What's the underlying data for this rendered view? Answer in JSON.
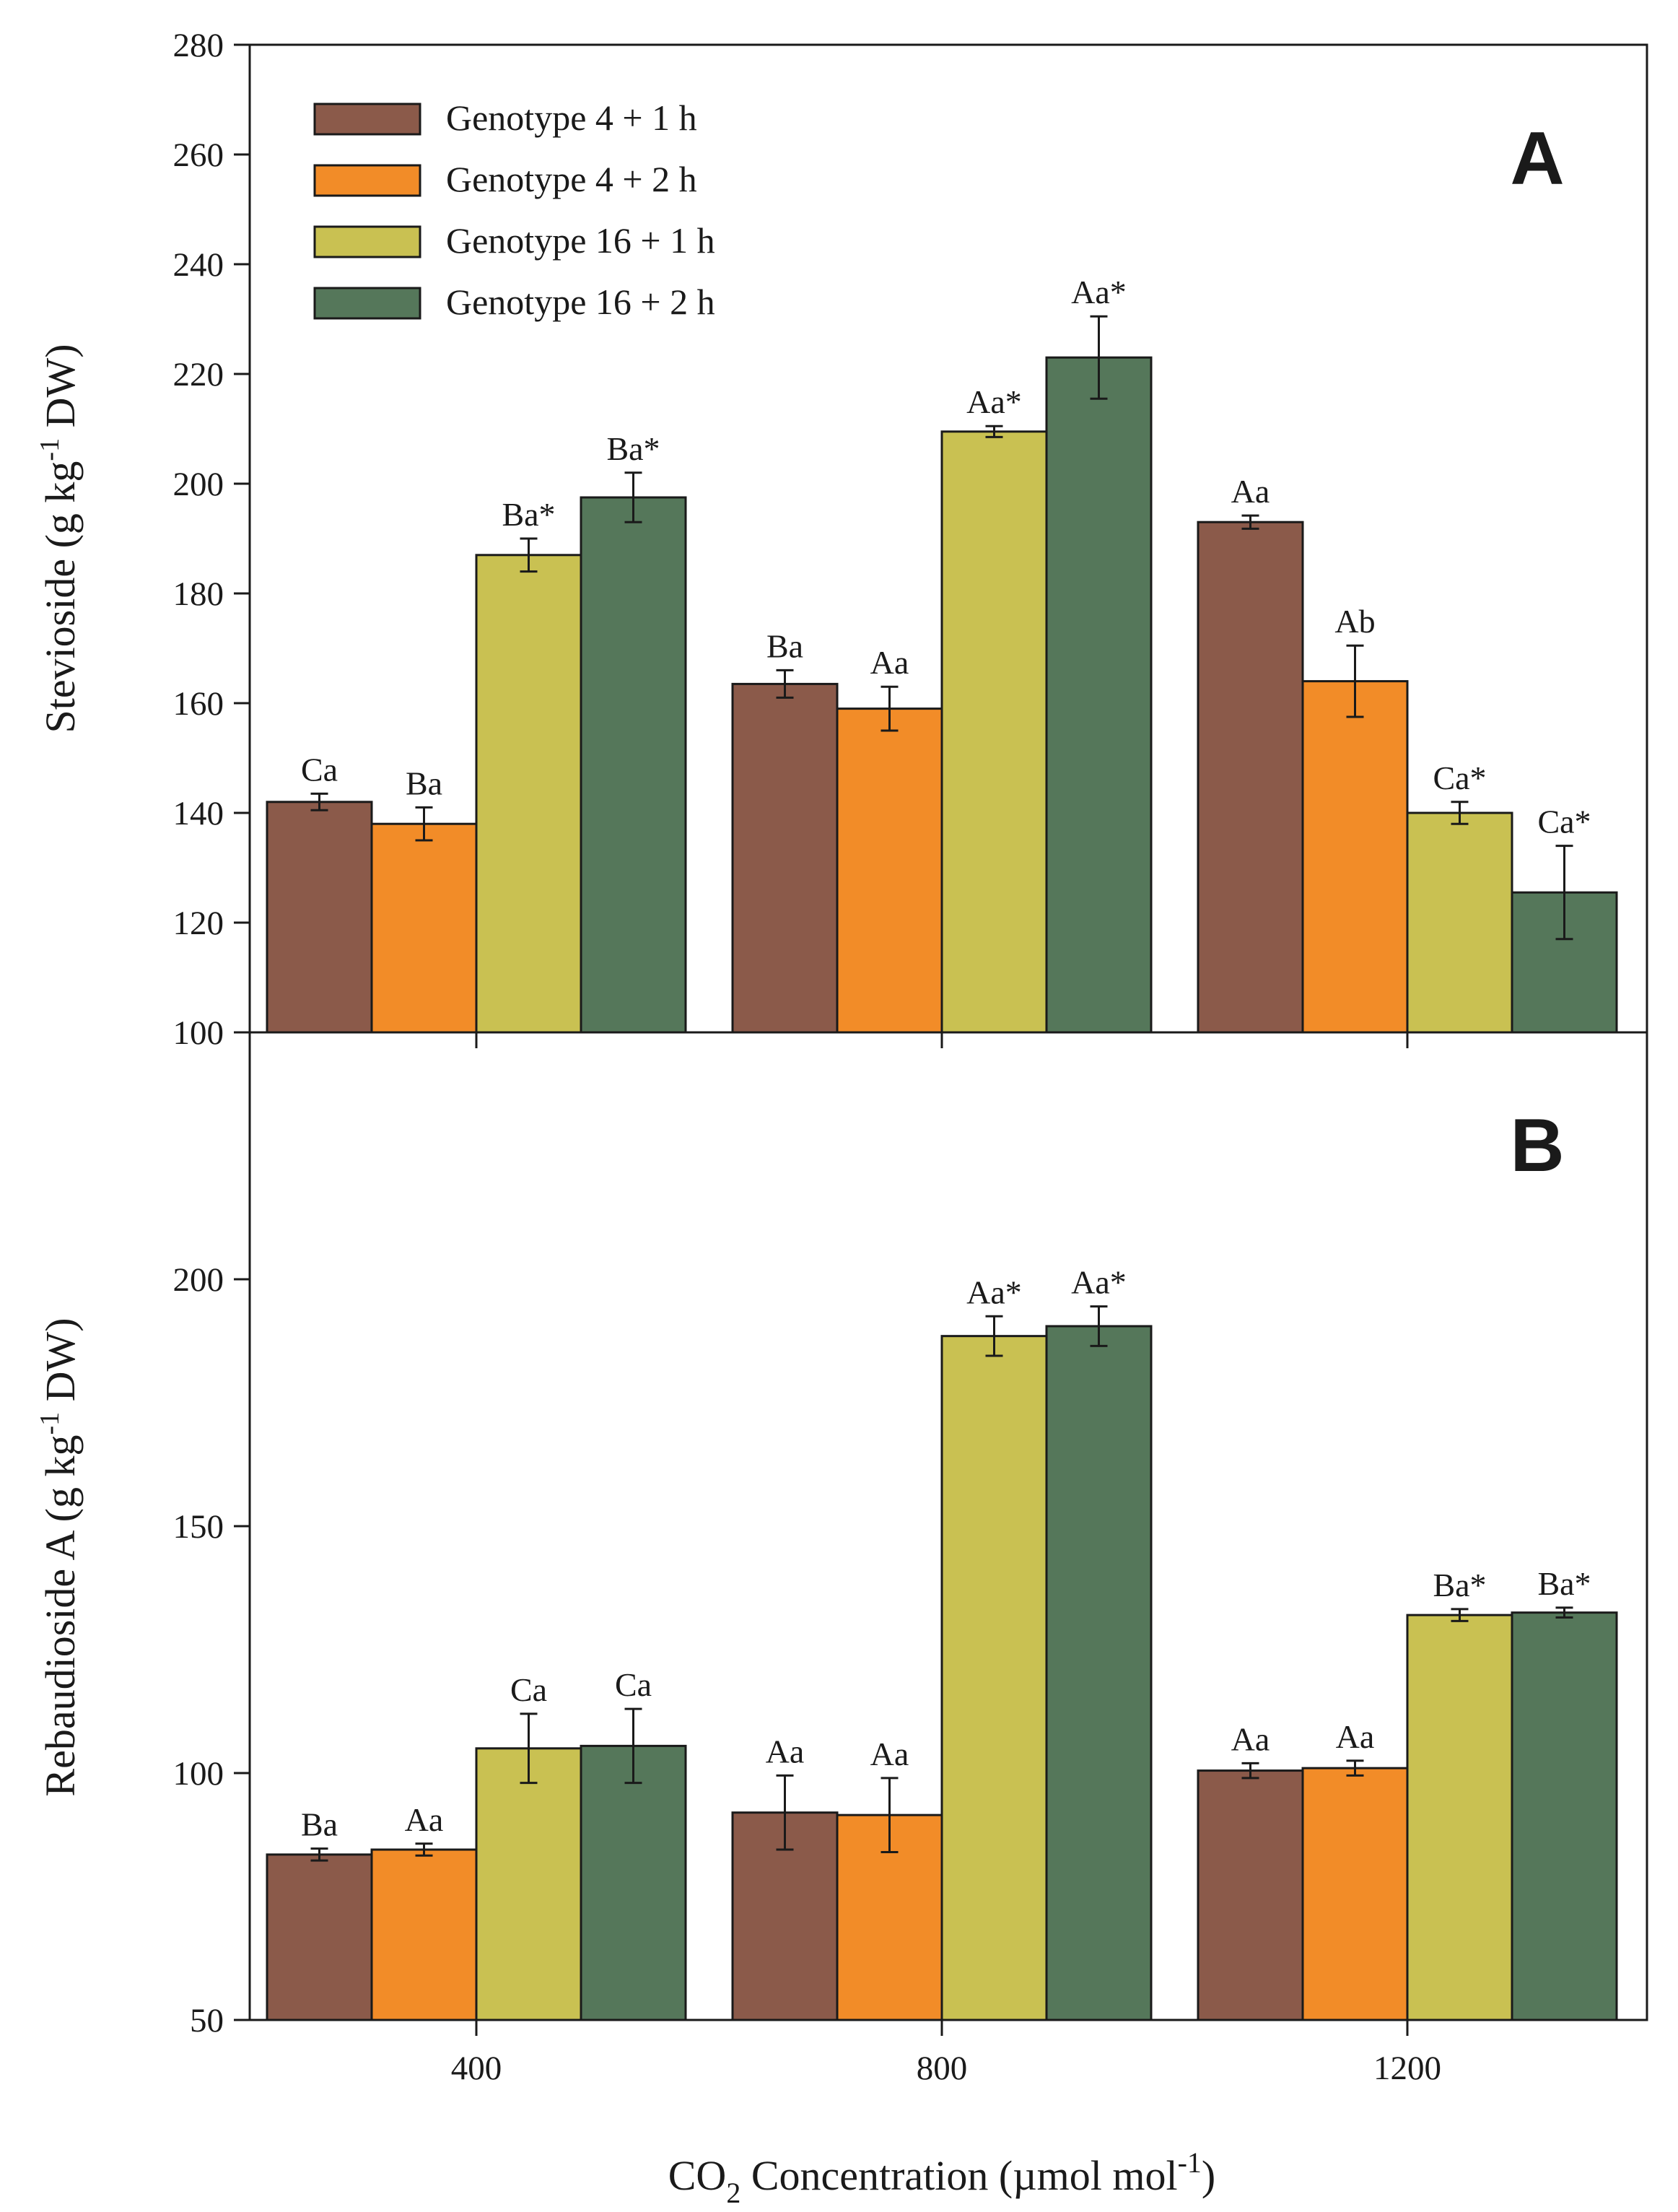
{
  "chart_data": {
    "type": "bar",
    "categories": [
      "400",
      "800",
      "1200"
    ],
    "xlabel": {
      "prefix": "CO",
      "sub": "2",
      "mid": " Concentration (µmol mol",
      "sup": "-1",
      "suffix": ")"
    },
    "legend": {
      "placement": "top-left"
    },
    "series": [
      {
        "name": "Genotype 4 + 1 h",
        "color": "#8b5a4a"
      },
      {
        "name": "Genotype 4 + 2 h",
        "color": "#f28c28"
      },
      {
        "name": "Genotype 16 + 1 h",
        "color": "#c9c152"
      },
      {
        "name": "Genotype 16 + 2 h",
        "color": "#55775a"
      }
    ],
    "panels": [
      {
        "id": "A",
        "letter": "A",
        "ylabel": {
          "prefix": "Stevioside (g kg",
          "sup": "-1",
          "suffix": " DW)"
        },
        "ylim": [
          100,
          280
        ],
        "yticks": [
          100,
          120,
          140,
          160,
          180,
          200,
          220,
          240,
          260,
          280
        ],
        "values": [
          [
            142,
            163.5,
            193
          ],
          [
            138,
            159,
            164
          ],
          [
            187,
            209.5,
            140
          ],
          [
            197.5,
            223,
            125.5
          ]
        ],
        "errors": [
          [
            1.5,
            2.5,
            1.2
          ],
          [
            3,
            4,
            6.5
          ],
          [
            3,
            1,
            2
          ],
          [
            4.5,
            7.5,
            8.5
          ]
        ],
        "labels": [
          [
            "Ca",
            "Ba",
            "Aa"
          ],
          [
            "Ba",
            "Aa",
            "Ab"
          ],
          [
            "Ba*",
            "Aa*",
            "Ca*"
          ],
          [
            "Ba*",
            "Aa*",
            "Ca*"
          ]
        ]
      },
      {
        "id": "B",
        "letter": "B",
        "ylabel": {
          "prefix": "Rebaudioside A (g kg",
          "sup": "-1",
          "suffix": " DW)"
        },
        "ylim": [
          50,
          250
        ],
        "yticks": [
          50,
          100,
          150,
          200
        ],
        "values": [
          [
            83.5,
            92,
            100.5
          ],
          [
            84.5,
            91.5,
            101
          ],
          [
            105,
            188.5,
            132
          ],
          [
            105.5,
            190.5,
            132.5
          ]
        ],
        "errors": [
          [
            1.2,
            7.5,
            1.5
          ],
          [
            1.2,
            7.5,
            1.5
          ],
          [
            7,
            4,
            1.2
          ],
          [
            7.5,
            4,
            1
          ]
        ],
        "labels": [
          [
            "Ba",
            "Aa",
            "Aa"
          ],
          [
            "Aa",
            "Aa",
            "Aa"
          ],
          [
            "Ca",
            "Aa*",
            "Ba*"
          ],
          [
            "Ca",
            "Aa*",
            "Ba*"
          ]
        ]
      }
    ]
  }
}
